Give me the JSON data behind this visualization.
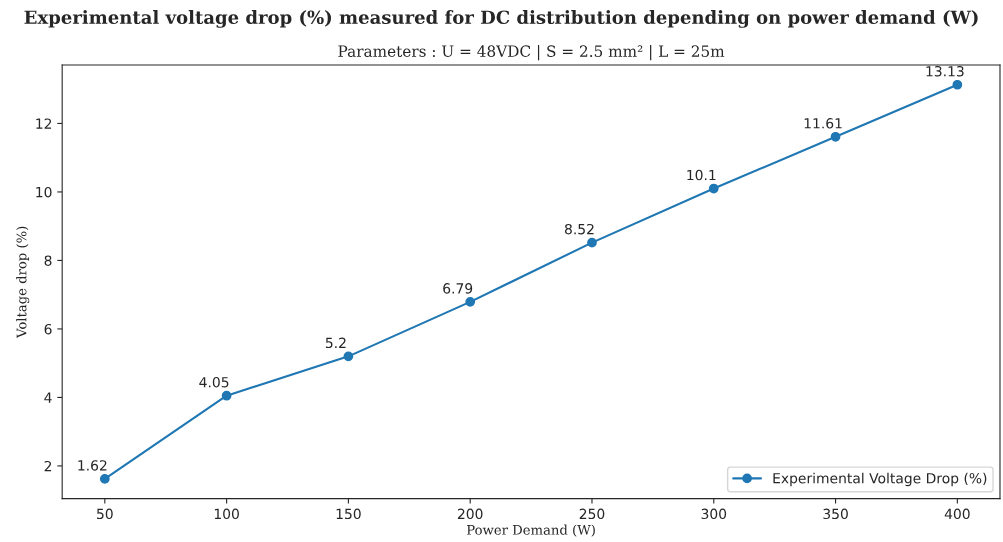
{
  "chart_data": {
    "type": "line",
    "title": "Experimental voltage drop (%) measured for DC distribution depending on power demand (W)",
    "subtitle": "Parameters : U = 48VDC | S = 2.5 mm² | L = 25m",
    "xlabel": "Power Demand (W)",
    "ylabel": "Voltage drop (%)",
    "x": [
      50,
      100,
      150,
      200,
      250,
      300,
      350,
      400
    ],
    "series": [
      {
        "name": "Experimental Voltage Drop (%)",
        "color": "#1f77b4",
        "values": [
          1.62,
          4.05,
          5.2,
          6.79,
          8.52,
          10.1,
          11.61,
          13.13
        ]
      }
    ],
    "xlim": [
      32.5,
      417.5
    ],
    "ylim": [
      1.0445,
      13.7055
    ],
    "xticks": [
      50,
      100,
      150,
      200,
      250,
      300,
      350,
      400
    ],
    "yticks": [
      2,
      4,
      6,
      8,
      10,
      12
    ],
    "data_labels": true,
    "marker": "circle",
    "line_style": "solid",
    "legend": "bottom right",
    "grid": false
  }
}
